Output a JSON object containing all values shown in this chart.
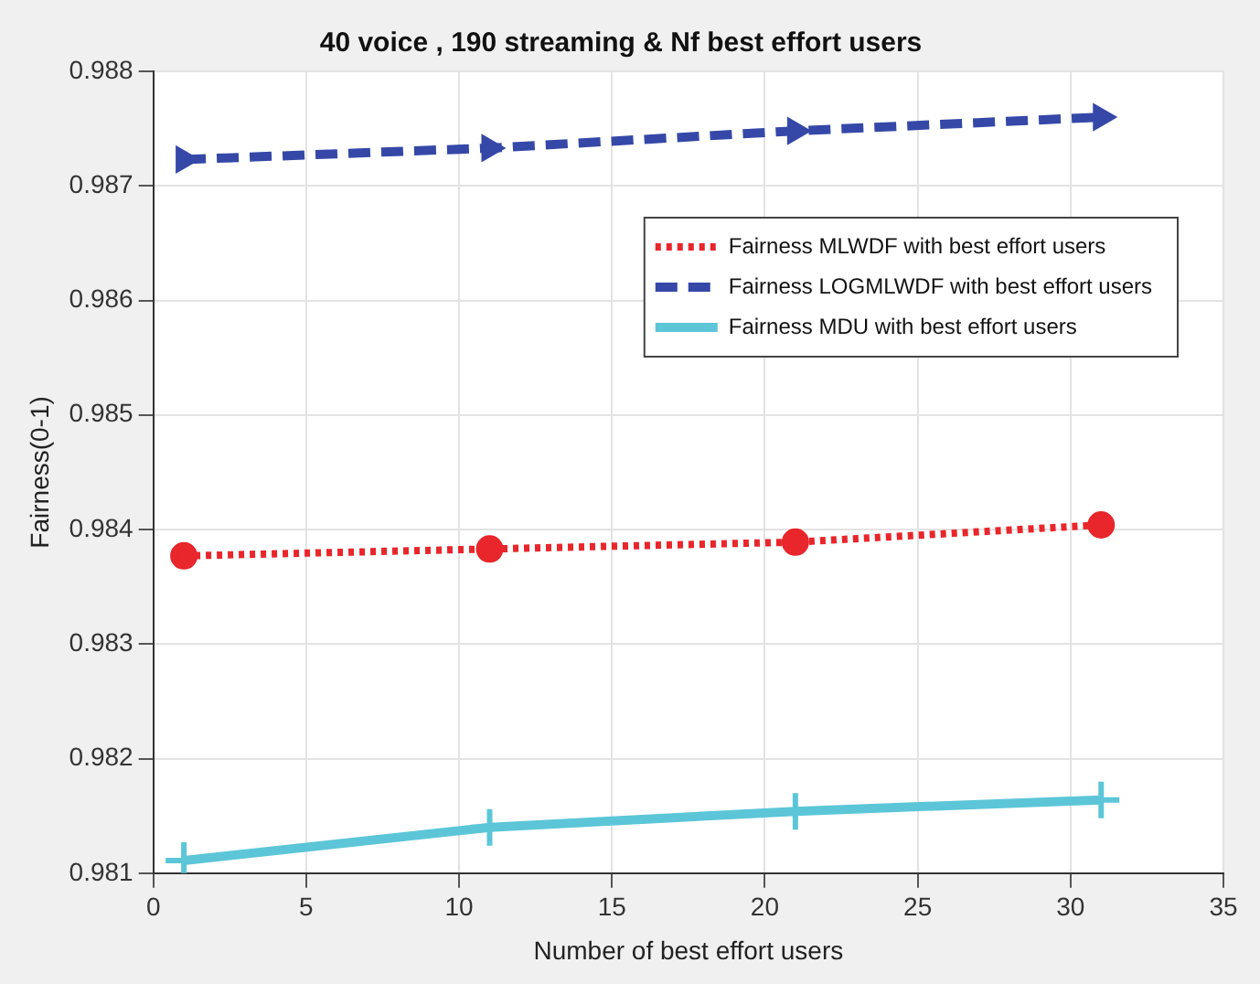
{
  "chart_data": {
    "type": "line",
    "title": "40 voice , 190 streaming & Nf best effort users",
    "xlabel": "Number of best effort users",
    "ylabel": "Fairness(0-1)",
    "x": [
      1,
      11,
      21,
      31
    ],
    "series": [
      {
        "name": "Fairness MLWDF with best effort users",
        "color": "#e8262b",
        "values": [
          0.98377,
          0.98383,
          0.98389,
          0.98404
        ],
        "line_style": "dotted",
        "marker": "circle"
      },
      {
        "name": "Fairness LOGMLWDF with best effort users",
        "color": "#3548a8",
        "values": [
          0.98723,
          0.98733,
          0.98748,
          0.9876
        ],
        "line_style": "dashed",
        "marker": "triangle"
      },
      {
        "name": "Fairness MDU with best effort users",
        "color": "#5cc6d8",
        "values": [
          0.98111,
          0.9814,
          0.98154,
          0.98164
        ],
        "line_style": "solid",
        "marker": "cross"
      }
    ],
    "xlim": [
      0,
      35
    ],
    "xticks": [
      0,
      5,
      10,
      15,
      20,
      25,
      30,
      35
    ],
    "ylim": [
      0.981,
      0.988
    ],
    "yticks": [
      0.981,
      0.982,
      0.983,
      0.984,
      0.985,
      0.986,
      0.987,
      0.988
    ],
    "grid": true,
    "legend": "top right"
  }
}
